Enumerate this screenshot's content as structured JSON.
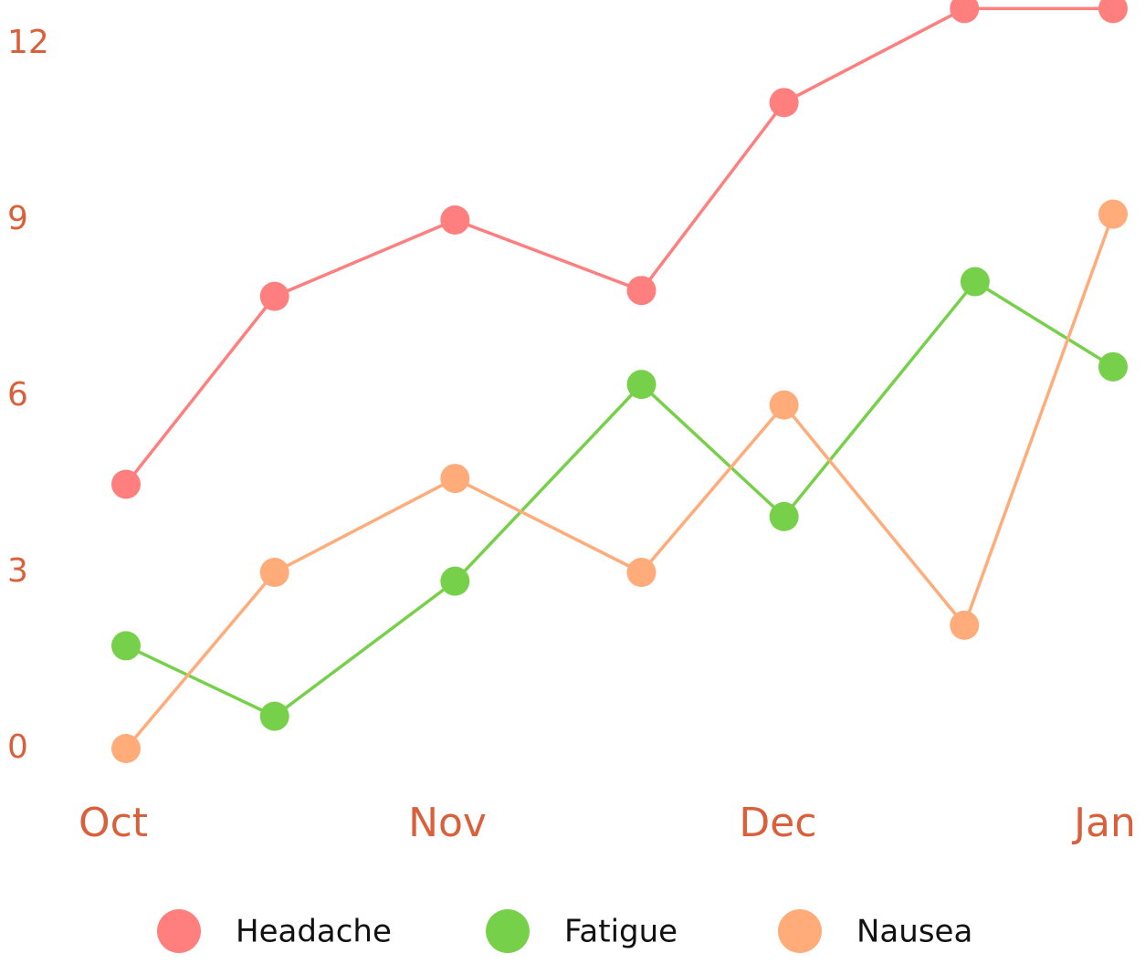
{
  "chart_data": {
    "type": "line",
    "x_labels": [
      "Oct",
      "Nov",
      "Dec",
      "Jan"
    ],
    "y_ticks": [
      "0",
      "3",
      "6",
      "9",
      "12"
    ],
    "ylim": [
      0,
      12
    ],
    "grid": false,
    "legend_position": "bottom",
    "tick_color": "#d9603b",
    "series": [
      {
        "name": "Headache",
        "color": "#ff7f7f",
        "points": [
          {
            "x": "Oct 1",
            "y": 4.5
          },
          {
            "x": "Oct 15",
            "y": 7.7
          },
          {
            "x": "Nov 1",
            "y": 9.0
          },
          {
            "x": "Nov 18",
            "y": 7.8
          },
          {
            "x": "Dec 1",
            "y": 11.0
          },
          {
            "x": "Dec 18",
            "y": 12.6
          },
          {
            "x": "Jan 1",
            "y": 12.6
          }
        ]
      },
      {
        "name": "Fatigue",
        "color": "#77d04a",
        "points": [
          {
            "x": "Oct 1",
            "y": 1.75
          },
          {
            "x": "Oct 15",
            "y": 0.55
          },
          {
            "x": "Nov 1",
            "y": 2.85
          },
          {
            "x": "Nov 18",
            "y": 6.2
          },
          {
            "x": "Dec 1",
            "y": 3.95
          },
          {
            "x": "Dec 19",
            "y": 7.95
          },
          {
            "x": "Jan 1",
            "y": 6.5
          }
        ]
      },
      {
        "name": "Nausea",
        "color": "#ffab7a",
        "points": [
          {
            "x": "Oct 1",
            "y": 0.0
          },
          {
            "x": "Oct 15",
            "y": 3.0
          },
          {
            "x": "Nov 1",
            "y": 4.6
          },
          {
            "x": "Nov 18",
            "y": 3.0
          },
          {
            "x": "Dec 1",
            "y": 5.85
          },
          {
            "x": "Dec 18",
            "y": 2.1
          },
          {
            "x": "Jan 1",
            "y": 9.1
          }
        ]
      }
    ]
  }
}
